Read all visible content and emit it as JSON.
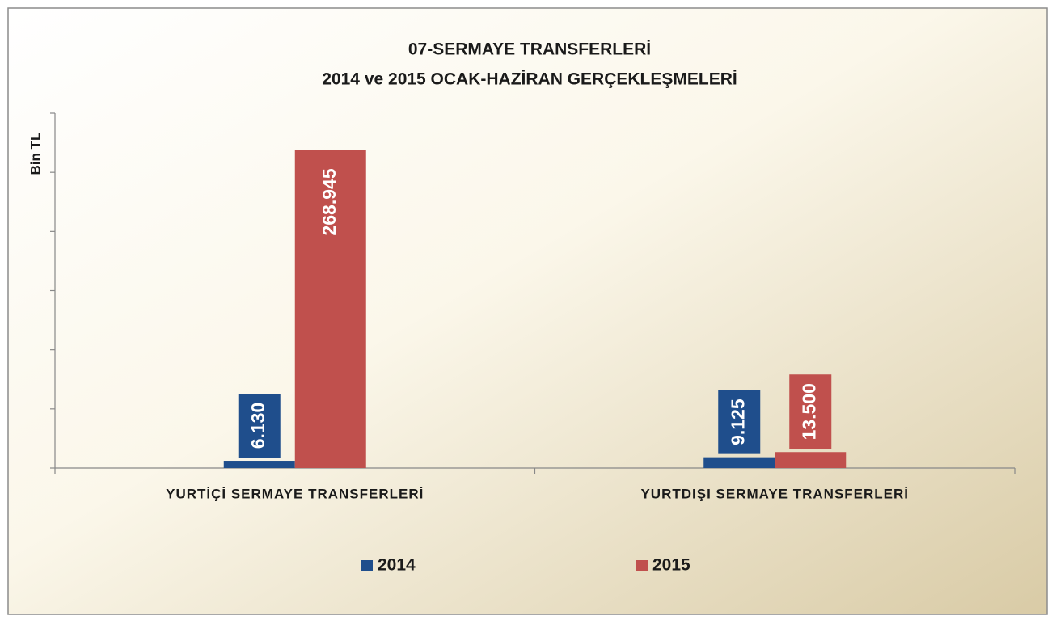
{
  "chart_data": {
    "type": "bar",
    "title": "07-SERMAYE TRANSFERLERİ",
    "subtitle": "2014 ve 2015 OCAK-HAZİRAN GERÇEKLEŞMELERİ",
    "y_label": "Bin TL",
    "categories": [
      "YURTİÇİ SERMAYE TRANSFERLERİ",
      "YURTDIŞI SERMAYE TRANSFERLERİ"
    ],
    "series": [
      {
        "name": "2014",
        "color": "#1f4e8c",
        "values": [
          6130,
          9125
        ],
        "value_labels": [
          "6.130",
          "9.125"
        ]
      },
      {
        "name": "2015",
        "color": "#c0504d",
        "values": [
          268945,
          13500
        ],
        "value_labels": [
          "268.945",
          "13.500"
        ]
      }
    ],
    "ylim": [
      0,
      300000
    ],
    "yticks": [
      0,
      50000,
      100000,
      150000,
      200000,
      250000,
      300000
    ],
    "legend": "bottom"
  }
}
